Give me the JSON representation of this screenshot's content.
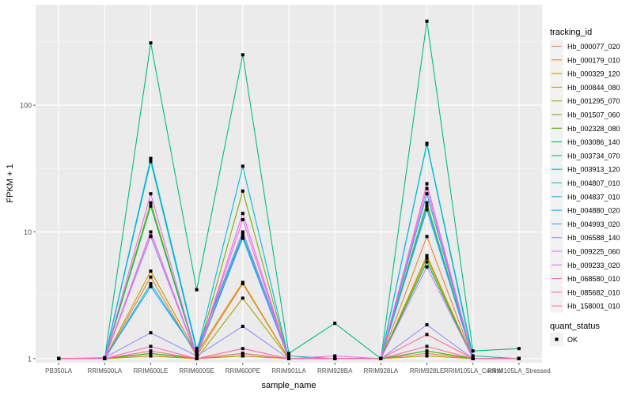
{
  "chart_data": {
    "type": "line",
    "xlabel": "sample_name",
    "ylabel": "FPKM + 1",
    "y_scale": "log10",
    "ylim": [
      0.93,
      620
    ],
    "y_ticks": [
      {
        "value": 1,
        "label": "1"
      },
      {
        "value": 10,
        "label": "10"
      },
      {
        "value": 100,
        "label": "100"
      }
    ],
    "grid": true,
    "legend_position": "right",
    "categories": [
      "PB350LA",
      "RRIM600LA",
      "RRIM600LE",
      "RRIM600SE",
      "RRIM600PE",
      "RRIM901LA",
      "RRIM928BA",
      "RRIM928LA",
      "RRIM928LE",
      "RRIM105LA_Control",
      "RRIM105LA_Stressed"
    ],
    "series": [
      {
        "name": "Hb_000077_020",
        "color": "#F8766D",
        "values": [
          1,
          1,
          1.05,
          1,
          1.05,
          1,
          1,
          1,
          1.1,
          1,
          1
        ]
      },
      {
        "name": "Hb_000179_010",
        "color": "#EA8331",
        "values": [
          1,
          1,
          4.4,
          1.05,
          3.9,
          1,
          1,
          1,
          9.2,
          1,
          1
        ]
      },
      {
        "name": "Hb_000329_120",
        "color": "#D89000",
        "values": [
          1,
          1,
          4.9,
          1.1,
          4,
          1,
          1,
          1,
          6.5,
          1,
          1
        ]
      },
      {
        "name": "Hb_000844_080",
        "color": "#C09B00",
        "values": [
          1,
          1,
          1.05,
          1,
          1.05,
          1,
          1,
          1,
          1.05,
          1,
          1
        ]
      },
      {
        "name": "Hb_001295_070",
        "color": "#A3A500",
        "values": [
          1,
          1,
          1.1,
          1,
          3,
          1,
          1,
          1,
          6.2,
          1,
          1
        ]
      },
      {
        "name": "Hb_001507_060",
        "color": "#7CAE00",
        "values": [
          1,
          1,
          17,
          1.05,
          21,
          1,
          1,
          1,
          17,
          1,
          1
        ]
      },
      {
        "name": "Hb_002328_080",
        "color": "#39B600",
        "values": [
          1,
          1,
          1.1,
          1,
          1.1,
          1,
          1,
          1,
          1.15,
          1,
          1
        ]
      },
      {
        "name": "Hb_003086_140",
        "color": "#00BB4E",
        "values": [
          1,
          1,
          16,
          1.05,
          9,
          1,
          1,
          1,
          5.8,
          1,
          1
        ]
      },
      {
        "name": "Hb_003734_070",
        "color": "#00BF7D",
        "values": [
          1,
          1,
          310,
          3.5,
          250,
          1.1,
          1.9,
          1,
          460,
          1.15,
          1.2
        ]
      },
      {
        "name": "Hb_003913_120",
        "color": "#00C1A3",
        "values": [
          1,
          1,
          36,
          1.15,
          10,
          1.05,
          1,
          1,
          50,
          1.05,
          1
        ]
      },
      {
        "name": "Hb_004807_010",
        "color": "#00BFC4",
        "values": [
          1,
          1,
          9.3,
          1.05,
          9.5,
          1,
          1,
          1,
          16,
          1,
          1
        ]
      },
      {
        "name": "Hb_004837_010",
        "color": "#00BAE0",
        "values": [
          1,
          1,
          3.9,
          1.1,
          33,
          1,
          1,
          1,
          49,
          1,
          1
        ]
      },
      {
        "name": "Hb_004880_020",
        "color": "#00B0F6",
        "values": [
          1,
          1,
          38,
          1.2,
          9,
          1,
          1,
          1,
          20,
          1,
          1
        ]
      },
      {
        "name": "Hb_004993_020",
        "color": "#35A2FF",
        "values": [
          1,
          1,
          3.7,
          1.1,
          8.9,
          1,
          1,
          1,
          15,
          1,
          1
        ]
      },
      {
        "name": "Hb_006588_140",
        "color": "#9590FF",
        "values": [
          1,
          1.02,
          1.6,
          1.05,
          1.8,
          1,
          1,
          1,
          1.85,
          1,
          1
        ]
      },
      {
        "name": "Hb_009225_060",
        "color": "#C77CFF",
        "values": [
          1,
          1,
          9.2,
          1.05,
          10,
          1,
          1,
          1,
          5.3,
          1,
          1
        ]
      },
      {
        "name": "Hb_009233_020",
        "color": "#E76BF3",
        "values": [
          1,
          1,
          20,
          1.05,
          14,
          1,
          1.05,
          1,
          22,
          1,
          1
        ]
      },
      {
        "name": "Hb_068580_010",
        "color": "#FA62DB",
        "values": [
          1,
          1,
          10,
          1.05,
          12.5,
          1,
          1,
          1,
          24,
          1,
          1
        ]
      },
      {
        "name": "Hb_085682_010",
        "color": "#FF62BC",
        "values": [
          1,
          1,
          1.25,
          1,
          1.2,
          1,
          1,
          1,
          1.25,
          1,
          1
        ]
      },
      {
        "name": "Hb_158001_010",
        "color": "#FF6C91",
        "values": [
          1,
          1,
          1.15,
          1,
          1.1,
          1,
          1,
          1,
          1.55,
          1,
          1
        ]
      }
    ],
    "legend": {
      "title": "tracking_id",
      "shape_title": "quant_status",
      "shape_label": "OK"
    }
  }
}
